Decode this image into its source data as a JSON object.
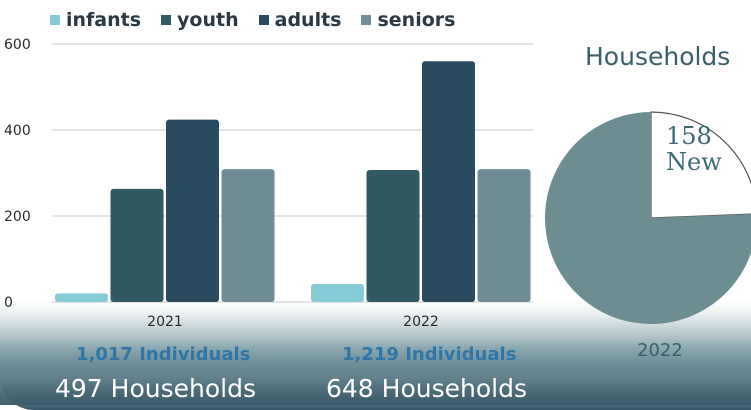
{
  "chart_data": [
    {
      "type": "bar",
      "categories": [
        "2021",
        "2022"
      ],
      "series": [
        {
          "name": "infants",
          "color": "#86cad8",
          "values": [
            20,
            42
          ]
        },
        {
          "name": "youth",
          "color": "#2f5a64",
          "values": [
            263,
            307
          ]
        },
        {
          "name": "adults",
          "color": "#284b5f",
          "values": [
            424,
            560
          ]
        },
        {
          "name": "seniors",
          "color": "#6f8d96",
          "values": [
            309,
            309
          ]
        }
      ],
      "ylim": [
        0,
        600
      ],
      "yticks": [
        0,
        200,
        400,
        600
      ],
      "grid": true,
      "legend": "top",
      "annotations": {
        "individuals": [
          "1,017 Individuals",
          "1,219 Individuals"
        ],
        "households": [
          "497 Households",
          "648 Households"
        ]
      }
    },
    {
      "type": "pie",
      "title": "Households",
      "category": "2022",
      "slices": [
        {
          "label": "158 New",
          "value": 158,
          "color": "#ffffff"
        },
        {
          "label": "",
          "value": 490,
          "color": "#6c8d91"
        }
      ]
    }
  ]
}
